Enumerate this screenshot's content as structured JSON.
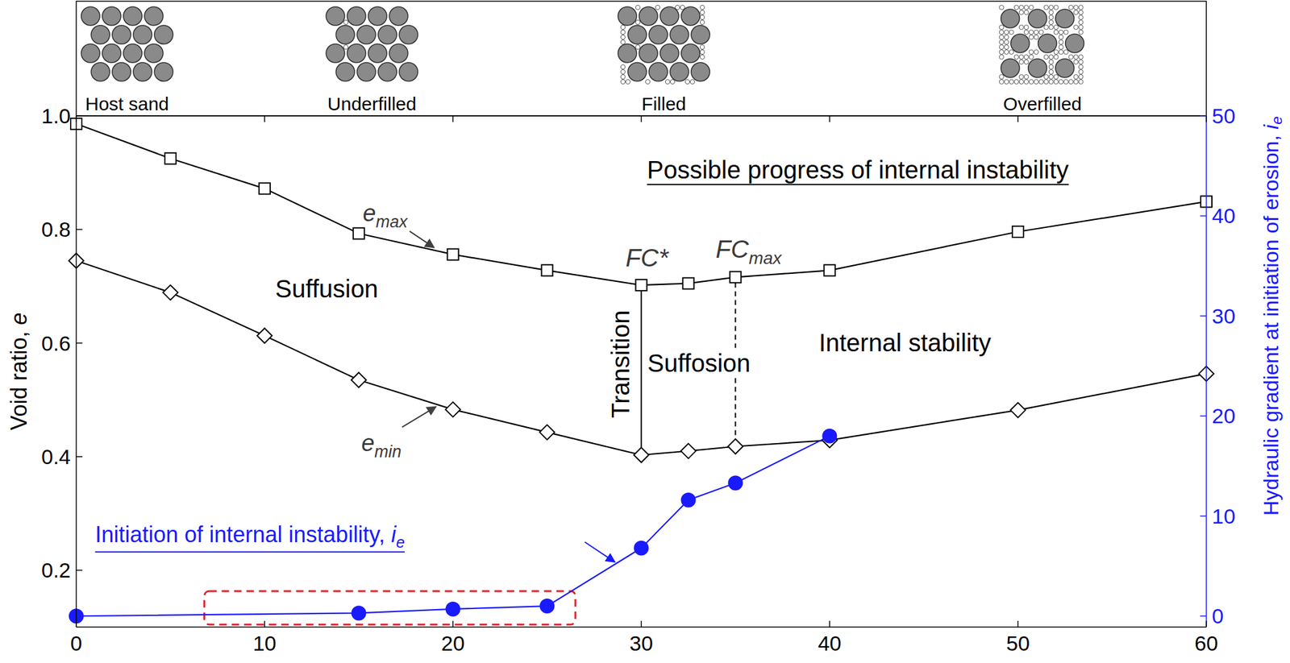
{
  "chart_data": {
    "type": "line",
    "xlim": [
      0,
      60
    ],
    "xticks": [
      0,
      10,
      20,
      30,
      40,
      50,
      60
    ],
    "ylim": [
      0.1,
      1.0
    ],
    "yticks": [
      0.2,
      0.4,
      0.6,
      0.8,
      {
        "value": 1.0,
        "label": "1.0"
      }
    ],
    "y2lim": [
      -1.1,
      50
    ],
    "y2ticks": [
      0,
      10,
      20,
      30,
      40,
      50
    ],
    "y_label": "Void ratio, e",
    "y2_label": "Hydraulic gradient at initiation of erosion, i",
    "y2_label_sub": "e",
    "series": [
      {
        "name": "e",
        "name_sub": "max",
        "color": "#000000",
        "marker": "open-square",
        "line_style": "solid",
        "x": [
          0,
          5,
          10,
          15,
          20,
          25,
          30,
          32.5,
          35,
          40,
          50,
          60
        ],
        "values": [
          0.986,
          0.925,
          0.872,
          0.793,
          0.756,
          0.728,
          0.702,
          0.705,
          0.716,
          0.728,
          0.796,
          0.849
        ]
      },
      {
        "name": "e",
        "name_sub": "min",
        "color": "#000000",
        "marker": "open-diamond",
        "line_style": "solid",
        "x": [
          0,
          5,
          10,
          15,
          20,
          25,
          30,
          32.5,
          35,
          40,
          50,
          60
        ],
        "values": [
          0.745,
          0.689,
          0.613,
          0.535,
          0.483,
          0.443,
          0.403,
          0.41,
          0.418,
          0.429,
          0.482,
          0.546
        ]
      },
      {
        "name": "Initiation of internal instability, i",
        "name_sub": "e",
        "color": "#1a1aff",
        "marker": "circle",
        "line_style": "solid",
        "axis": "y2",
        "x": [
          0,
          15,
          20,
          25,
          30,
          32.5,
          35,
          40
        ],
        "values": [
          0,
          0.3,
          0.7,
          1.0,
          6.8,
          11.6,
          13.3,
          18.0
        ]
      }
    ],
    "reference_lines": [
      {
        "text": "FC*",
        "x": 30,
        "line_style": "solid"
      },
      {
        "text": "FC",
        "sub": "max",
        "x": 35,
        "line_style": "dashed"
      }
    ],
    "annotations": [
      {
        "text": "Possible progress of internal instability"
      },
      {
        "text": "Suffusion"
      },
      {
        "text": "Transition"
      },
      {
        "text": "Suffosion"
      },
      {
        "text": "Internal stability"
      }
    ],
    "highlight": {
      "x": [
        6.8,
        26.5
      ],
      "color": "#e8202a",
      "line_style": "dashed"
    },
    "schematic_labels": [
      "Host sand",
      "Underfilled",
      "Filled",
      "Overfilled"
    ]
  }
}
